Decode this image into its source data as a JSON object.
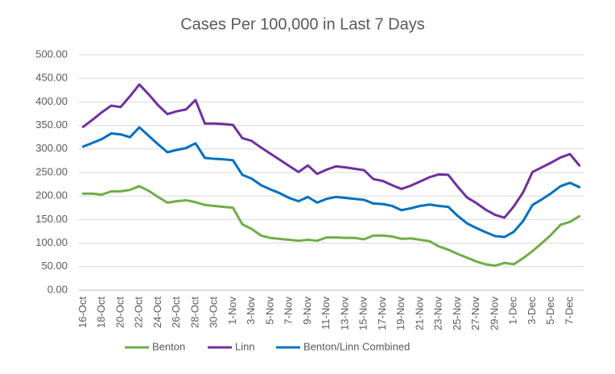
{
  "chart_data": {
    "type": "line",
    "title": "Cases Per 100,000 in Last 7 Days",
    "categories": [
      "16-Oct",
      null,
      "18-Oct",
      null,
      "20-Oct",
      null,
      "22-Oct",
      null,
      "24-Oct",
      null,
      "26-Oct",
      null,
      "28-Oct",
      null,
      "30-Oct",
      null,
      "1-Nov",
      null,
      "3-Nov",
      null,
      "5-Nov",
      null,
      "7-Nov",
      null,
      "9-Nov",
      null,
      "11-Nov",
      null,
      "13-Nov",
      null,
      "15-Nov",
      null,
      "17-Nov",
      null,
      "19-Nov",
      null,
      "21-Nov",
      null,
      "23-Nov",
      null,
      "25-Nov",
      null,
      "27-Nov",
      null,
      "29-Nov",
      null,
      "1-Dec",
      null,
      "3-Dec",
      null,
      "5-Dec",
      null,
      "7-Dec",
      null
    ],
    "series": [
      {
        "name": "Benton",
        "color": "#70AD47",
        "values": [
          205,
          205,
          203,
          210,
          210,
          213,
          221,
          211,
          198,
          186,
          189,
          191,
          187,
          181,
          179,
          177,
          175,
          140,
          130,
          116,
          111,
          109,
          107,
          105,
          107,
          105,
          112,
          112,
          111,
          111,
          108,
          116,
          116,
          114,
          109,
          110,
          107,
          104,
          93,
          86,
          77,
          69,
          61,
          55,
          52,
          58,
          55,
          68,
          83,
          100,
          118,
          139,
          145,
          157
        ]
      },
      {
        "name": "Linn",
        "color": "#7030A0",
        "values": [
          347,
          362,
          378,
          392,
          389,
          412,
          437,
          416,
          393,
          374,
          380,
          384,
          404,
          354,
          354,
          353,
          351,
          323,
          317,
          303,
          290,
          277,
          264,
          251,
          265,
          247,
          256,
          263,
          261,
          258,
          255,
          236,
          232,
          223,
          215,
          222,
          231,
          240,
          246,
          245,
          220,
          197,
          185,
          171,
          160,
          154,
          178,
          208,
          251,
          261,
          271,
          282,
          289,
          265
        ]
      },
      {
        "name": "Benton/Linn Combined",
        "color": "#0070C0",
        "values": [
          305,
          313,
          321,
          333,
          331,
          325,
          346,
          328,
          310,
          293,
          298,
          302,
          312,
          281,
          279,
          278,
          276,
          245,
          237,
          223,
          214,
          206,
          196,
          189,
          198,
          186,
          194,
          198,
          196,
          194,
          192,
          184,
          183,
          179,
          170,
          174,
          179,
          182,
          179,
          177,
          158,
          142,
          132,
          123,
          115,
          113,
          124,
          147,
          181,
          193,
          206,
          221,
          228,
          219
        ]
      }
    ],
    "ylim": [
      0,
      500
    ],
    "yticks": [
      {
        "value": 0,
        "label": "0.00"
      },
      {
        "value": 50,
        "label": "50.00"
      },
      {
        "value": 100,
        "label": "100.00"
      },
      {
        "value": 150,
        "label": "150.00"
      },
      {
        "value": 200,
        "label": "200.00"
      },
      {
        "value": 250,
        "label": "250.00"
      },
      {
        "value": 300,
        "label": "300.00"
      },
      {
        "value": 350,
        "label": "350.00"
      },
      {
        "value": 400,
        "label": "400.00"
      },
      {
        "value": 450,
        "label": "450.00"
      },
      {
        "value": 500,
        "label": "500.00"
      }
    ],
    "grid": true,
    "legend": "bottom"
  }
}
